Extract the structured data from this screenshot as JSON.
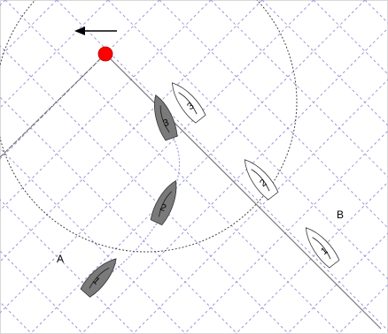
{
  "labels": {
    "a": "A",
    "b": "B"
  },
  "boats_grey": [
    {
      "number": "1"
    },
    {
      "number": "2"
    },
    {
      "number": "3"
    }
  ],
  "boats_white": [
    {
      "number": "1"
    },
    {
      "number": "2"
    },
    {
      "number": "3"
    }
  ],
  "colors": {
    "grid": "#9a9ad8",
    "grey_boat": "#7a7a7a",
    "white_boat": "#ffffff",
    "mark": "#ff0000",
    "track": "#8a8ae0"
  },
  "icons": {
    "wind_arrow": "left-arrow-icon",
    "mark": "red-buoy-mark"
  }
}
